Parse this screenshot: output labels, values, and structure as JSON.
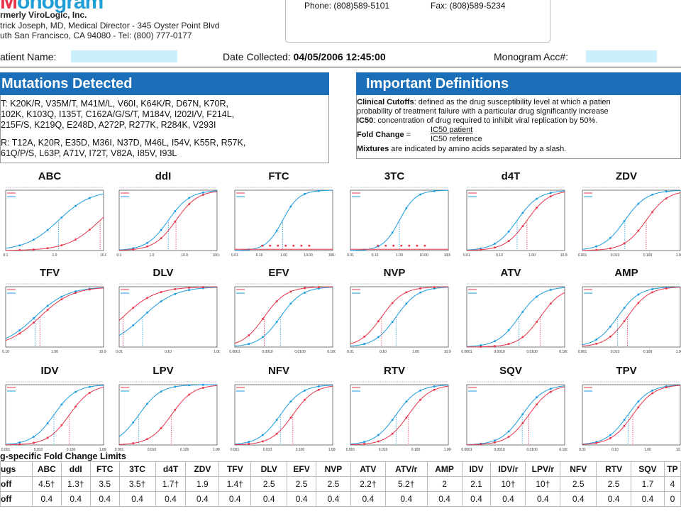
{
  "header": {
    "logo_text": "onogram",
    "lab_name": "rmerly ViroLogic, Inc.",
    "lab_director": "trick Joseph, MD, Medical Director - 345 Oyster Point Blvd",
    "lab_address": "uth San Francisco, CA 94080 - Tel: (800) 777-0177",
    "phone": "Phone: (808)589-5101",
    "fax": "Fax: (808)589-5234"
  },
  "patient": {
    "name_label": "atient Name:",
    "date_label": "Date Collected:",
    "date_value": "04/05/2006 12:45:00",
    "acc_label": "Monogram Acc#:"
  },
  "mutations": {
    "title": "Mutations Detected",
    "lines": [
      "T: K20K/R, V35M/T, M41M/L, V60I, K64K/R, D67N, K70R,",
      "102K, K103Q, I135T, C162A/G/S/T, M184V, I202I/V, F214L,",
      "215F/S, K219Q, E248D, A272P, R277K, R284K, V293I",
      "",
      "R: T12A, K20R, E35D, M36I, N37D, M46L, I54V, K55R, R57K,",
      "61Q/P/S, L63P, A71V, I72T, V82A, I85V, I93L"
    ]
  },
  "definitions": {
    "title": "Important Definitions",
    "cutoff_term": "Clinical Cutoffs",
    "cutoff_text_1": ": defined as the drug susceptibility level at which a patien",
    "cutoff_text_2": "probability of treatment failure with a particular drug significantly increase",
    "ic50_term": "IC50",
    "ic50_text": ": concentration of drug required to inhibit viral replication by 50%.",
    "fold_term": "Fold Change",
    "fold_eq": " = ",
    "fold_num": "IC50 patient",
    "fold_den": "IC50 reference",
    "mix_term": "Mixtures",
    "mix_text": " are indicated by amino acids separated by a slash."
  },
  "colors": {
    "patient": "#e8344a",
    "reference": "#1a9be0",
    "bar": "#1a6fb8"
  },
  "chart_data": [
    {
      "type": "line",
      "title": "ABC",
      "ref_ic50": 1.2,
      "pat_ic50": 8.5,
      "xticks": [
        "0.1",
        "1.0",
        "10.0"
      ]
    },
    {
      "type": "line",
      "title": "ddI",
      "ref_ic50": 3.2,
      "pat_ic50": 5.5,
      "xticks": [
        "0.1",
        "1.0",
        "10.0",
        "100.0"
      ]
    },
    {
      "type": "line",
      "title": "FTC",
      "ref_ic50": 0.9,
      "pat_ic50": null,
      "xticks": [
        "0.01",
        "0.10",
        "1.00",
        "10.00",
        "100.0"
      ]
    },
    {
      "type": "line",
      "title": "3TC",
      "ref_ic50": 1.0,
      "pat_ic50": null,
      "xticks": [
        "0.01",
        "0.10",
        "1.00",
        "10.00",
        "100.0"
      ]
    },
    {
      "type": "line",
      "title": "d4T",
      "ref_ic50": 0.35,
      "pat_ic50": 0.7,
      "xticks": [
        "0.01",
        "0.10",
        "1.00",
        "10.00"
      ]
    },
    {
      "type": "line",
      "title": "ZDV",
      "ref_ic50": 0.02,
      "pat_ic50": 0.09,
      "xticks": [
        "0.001",
        "0.010",
        "0.100",
        "1.000"
      ]
    },
    {
      "type": "line",
      "title": "TFV",
      "ref_ic50": 0.4,
      "pat_ic50": 0.5,
      "xticks": [
        "0.10",
        "1.00",
        "10.00"
      ]
    },
    {
      "type": "line",
      "title": "DLV",
      "ref_ic50": 0.03,
      "pat_ic50": 0.012,
      "xticks": [
        "0.01",
        "0.10",
        "1.00"
      ]
    },
    {
      "type": "line",
      "title": "EFV",
      "ref_ic50": 0.0025,
      "pat_ic50": 0.0008,
      "xticks": [
        "0.0001",
        "0.0010",
        "0.0100",
        "0.1000"
      ]
    },
    {
      "type": "line",
      "title": "NVP",
      "ref_ic50": 0.25,
      "pat_ic50": 0.09,
      "xticks": [
        "0.01",
        "0.10",
        "1.00",
        "10.00"
      ]
    },
    {
      "type": "line",
      "title": "ATV",
      "ref_ic50": 0.004,
      "pat_ic50": 0.018,
      "xticks": [
        "0.0001",
        "0.0010",
        "0.0100",
        "0.1000"
      ]
    },
    {
      "type": "line",
      "title": "AMP",
      "ref_ic50": 0.012,
      "pat_ic50": 0.024,
      "xticks": [
        "0.001",
        "0.010",
        "0.100",
        "1.000"
      ]
    },
    {
      "type": "line",
      "title": "IDV",
      "ref_ic50": 0.03,
      "pat_ic50": 0.09,
      "xticks": [
        "0.001",
        "0.010",
        "0.100",
        "1.000"
      ]
    },
    {
      "type": "line",
      "title": "LPV",
      "ref_ic50": 0.004,
      "pat_ic50": 0.04,
      "xticks": [
        "0.001",
        "0.010",
        "0.100",
        "1.000"
      ]
    },
    {
      "type": "line",
      "title": "NFV",
      "ref_ic50": 0.025,
      "pat_ic50": 0.06,
      "xticks": [
        "0.001",
        "0.010",
        "0.100",
        "1.000"
      ]
    },
    {
      "type": "line",
      "title": "RTV",
      "ref_ic50": 0.025,
      "pat_ic50": 0.06,
      "xticks": [
        "0.001",
        "0.010",
        "0.100",
        "1.000"
      ]
    },
    {
      "type": "line",
      "title": "SQV",
      "ref_ic50": 0.005,
      "pat_ic50": 0.008,
      "xticks": [
        "0.0001",
        "0.0010",
        "0.0100",
        "0.1000"
      ]
    },
    {
      "type": "line",
      "title": "TPV",
      "ref_ic50": 0.25,
      "pat_ic50": 0.35,
      "xticks": [
        "0.01",
        "0.10",
        "1.00",
        "10.00"
      ]
    }
  ],
  "fold_change": {
    "title": "g-specific Fold Change Limits",
    "header_label": "ugs",
    "drugs": [
      "ABC",
      "ddI",
      "FTC",
      "3TC",
      "d4T",
      "ZDV",
      "TFV",
      "DLV",
      "EFV",
      "NVP",
      "ATV",
      "ATV/r",
      "AMP",
      "IDV",
      "IDV/r",
      "LPV/r",
      "NFV",
      "RTV",
      "SQV",
      "TP"
    ],
    "rows": [
      {
        "label": "off",
        "values": [
          "4.5†",
          "1.3†",
          "3.5",
          "3.5†",
          "1.7†",
          "1.9",
          "1.4†",
          "2.5",
          "2.5",
          "2.5",
          "2.2†",
          "5.2†",
          "2",
          "2.1",
          "10†",
          "10†",
          "2.5",
          "2.5",
          "1.7",
          "4"
        ]
      },
      {
        "label": "off",
        "values": [
          "0.4",
          "0.4",
          "0.4",
          "0.4",
          "0.4",
          "0.4",
          "0.4",
          "0.4",
          "0.4",
          "0.4",
          "0.4",
          "0.4",
          "0.4",
          "0.4",
          "0.4",
          "0.4",
          "0.4",
          "0.4",
          "0.4",
          "0"
        ]
      }
    ]
  }
}
